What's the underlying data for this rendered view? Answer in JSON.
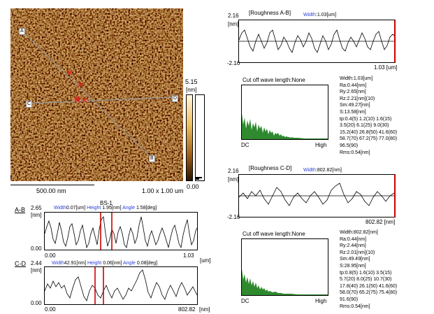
{
  "colors": {
    "afm_dark": "#4a2600",
    "afm_mid": "#a0601a",
    "afm_light": "#f0c060",
    "marker_red": "#e02020",
    "bar_red": "#cc0000",
    "hist_green": "#2f8a2f",
    "link_blue": "#2a3fd6"
  },
  "image": {
    "markers": {
      "a": "A",
      "b": "B",
      "c": "C",
      "d": "D"
    },
    "scale_bar_label": "500.00 nm",
    "size_label": "1.00 x 1.00 um",
    "colorbar": {
      "max": "5.15",
      "unit": "[nm]",
      "min": "0.00"
    }
  },
  "bs_panel": {
    "title": "BS-1",
    "ab": {
      "label": "A-B",
      "ymax": "2.65",
      "unit": "[nm]",
      "ymin": "0.00",
      "xmin": "0.00",
      "xmax": "1.03",
      "xunit": "[um]",
      "width_label": "Width",
      "width_value": "0.07[um]",
      "height_label": "Height",
      "height_value": "1.95[nm]",
      "angle_label": "Angle",
      "angle_value": "1.58[deg]"
    },
    "cd": {
      "label": "C-D",
      "ymax": "2.44",
      "unit": "[nm]",
      "ymin": "0.00",
      "xmin": "0.00",
      "xmax": "802.82",
      "xunit": "[nm]",
      "width_label": "Width",
      "width_value": "42.91[nm]",
      "height_label": "Height",
      "height_value": "0.06[nm]",
      "angle_label": "Angle",
      "angle_value": "0.08[deg]"
    }
  },
  "roughness_ab": {
    "title": "[Roughness A-B]",
    "ymax": "2.16",
    "unit": "[nm]",
    "ymin": "-2.16",
    "width_label": "Width",
    "width_value": "1.03[um]",
    "xmax": "1.03 [um]",
    "cutoff_title": "Cut off wave length:None",
    "dc": "DC",
    "high": "High",
    "stats": [
      "Width:1.03[um]",
      "Ra:0.44[nm]",
      "Ry:2.65[nm]",
      "Rz:2.21[nm](10)",
      "Sm:49.27[nm]",
      "S:13.58[nm]",
      "tp:0.4(5) 1.2(10) 1.6(15)",
      "3.5(20) 6.1(25) 9.0(30)",
      "15.2(40) 26.8(50) 41.6(60)",
      "58.7(70) 67.2(75) 77.0(80)",
      "96.5(90)",
      "Rms:0.54[nm]"
    ]
  },
  "roughness_cd": {
    "title": "[Roughness C-D]",
    "ymax": "2.16",
    "unit": "[nm]",
    "ymin": "-2.16",
    "width_label": "Width",
    "width_value": "802.82[nm]",
    "xmax": "802.82 [nm]",
    "cutoff_title": "Cut off wave length:None",
    "dc": "DC",
    "high": "High",
    "stats": [
      "Width:802.82[nm]",
      "Ra:0.44[nm]",
      "Ry:2.44[nm]",
      "Rz:2.01[nm](10)",
      "Sm:49.49[nm]",
      "S:28.95[nm]",
      "tp:0.8(5) 1.6(10) 3.5(15)",
      "5.7(20) 8.0(25) 10.7(30)",
      "17.8(40) 26.1(50) 41.6(60)",
      "58.0(70) 65.2(75) 75.4(80)",
      "91.6(90)",
      "Rms:0.54[nm]"
    ]
  }
}
